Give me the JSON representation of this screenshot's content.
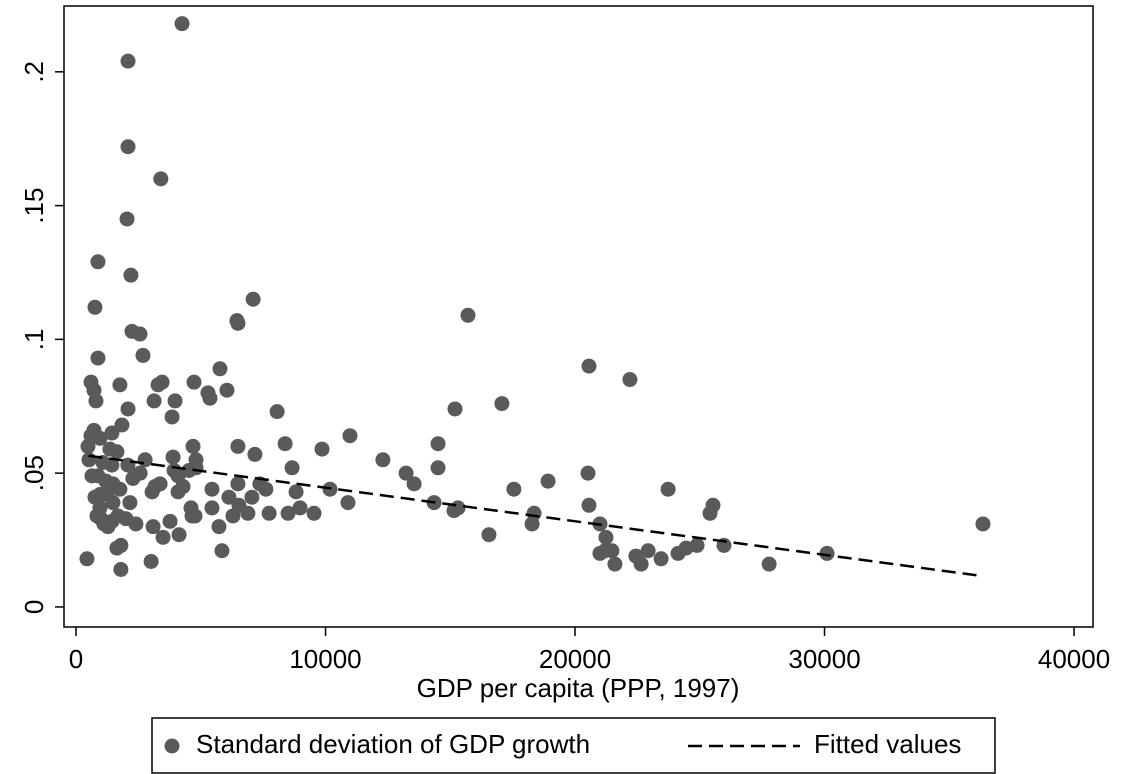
{
  "chart_data": {
    "type": "scatter",
    "x_label": "GDP per capita (PPP, 1997)",
    "xlim": [
      -481,
      40760
    ],
    "ylim": [
      -0.0075,
      0.2246
    ],
    "xticks": [
      0,
      10000,
      20000,
      30000,
      40000
    ],
    "yticks": [
      0,
      {
        "value": 0.05,
        "label": ".05"
      },
      {
        "value": 0.1,
        "label": ".1"
      },
      {
        "value": 0.15,
        "label": ".15"
      },
      {
        "value": 0.2,
        "label": ".2"
      }
    ],
    "grid": false,
    "legend": "bottom",
    "series": [
      {
        "name": "Standard deviation of GDP growth",
        "color": "#5a5a5a",
        "style": "markers",
        "x": [
          4250,
          2085,
          2085,
          3400,
          2045,
          880,
          2200,
          760,
          2245,
          2565,
          7100,
          6450,
          6490,
          2685,
          880,
          600,
          720,
          800,
          1760,
          3290,
          3450,
          3970,
          3130,
          3850,
          2085,
          4730,
          5290,
          5370,
          5770,
          6050,
          8060,
          15710,
          15190,
          17070,
          20560,
          22200,
          20520,
          20560,
          18920,
          17550,
          14510,
          14510,
          12300,
          13230,
          13550,
          10980,
          9860,
          10180,
          10900,
          14350,
          15150,
          15310,
          16550,
          18280,
          18360,
          21000,
          21240,
          21000,
          21200,
          21480,
          21600,
          22440,
          22650,
          22930,
          23450,
          24130,
          24450,
          24890,
          23730,
          25530,
          25410,
          25970,
          27780,
          30100,
          36350,
          8380,
          8660,
          8820,
          8980,
          8500,
          9540,
          7740,
          7050,
          7370,
          7610,
          7170,
          6490,
          6490,
          6530,
          6890,
          6290,
          6130,
          5450,
          5450,
          5730,
          5850,
          4690,
          4810,
          4810,
          4530,
          4090,
          3890,
          3930,
          4090,
          4290,
          4610,
          4770,
          4650,
          4130,
          3770,
          3490,
          3090,
          3050,
          3370,
          3170,
          2770,
          2570,
          2280,
          2080,
          1840,
          1440,
          1640,
          1440,
          1480,
          1760,
          1480,
          2160,
          2000,
          2400,
          1680,
          1440,
          1280,
          1120,
          1000,
          840,
          960,
          760,
          960,
          1240,
          1200,
          880,
          640,
          1080,
          1360,
          520,
          480,
          600,
          720,
          960,
          1800,
          1640,
          1800,
          3010,
          440
        ],
        "values": [
          0.218,
          0.204,
          0.172,
          0.16,
          0.145,
          0.129,
          0.124,
          0.112,
          0.103,
          0.102,
          0.115,
          0.107,
          0.106,
          0.094,
          0.093,
          0.084,
          0.081,
          0.077,
          0.083,
          0.083,
          0.084,
          0.077,
          0.077,
          0.071,
          0.074,
          0.084,
          0.08,
          0.078,
          0.089,
          0.081,
          0.073,
          0.109,
          0.074,
          0.076,
          0.09,
          0.085,
          0.05,
          0.038,
          0.047,
          0.044,
          0.061,
          0.052,
          0.055,
          0.05,
          0.046,
          0.064,
          0.059,
          0.044,
          0.039,
          0.039,
          0.036,
          0.037,
          0.027,
          0.031,
          0.035,
          0.031,
          0.026,
          0.02,
          0.021,
          0.021,
          0.016,
          0.019,
          0.016,
          0.021,
          0.018,
          0.02,
          0.022,
          0.023,
          0.044,
          0.038,
          0.035,
          0.023,
          0.016,
          0.02,
          0.031,
          0.061,
          0.052,
          0.043,
          0.037,
          0.035,
          0.035,
          0.035,
          0.041,
          0.046,
          0.044,
          0.057,
          0.06,
          0.046,
          0.038,
          0.035,
          0.034,
          0.041,
          0.044,
          0.037,
          0.03,
          0.021,
          0.06,
          0.055,
          0.052,
          0.051,
          0.049,
          0.056,
          0.051,
          0.043,
          0.045,
          0.037,
          0.034,
          0.034,
          0.027,
          0.032,
          0.026,
          0.03,
          0.043,
          0.046,
          0.045,
          0.055,
          0.05,
          0.048,
          0.053,
          0.068,
          0.065,
          0.058,
          0.053,
          0.046,
          0.044,
          0.039,
          0.039,
          0.033,
          0.031,
          0.034,
          0.032,
          0.03,
          0.031,
          0.033,
          0.034,
          0.037,
          0.041,
          0.042,
          0.042,
          0.047,
          0.049,
          0.049,
          0.054,
          0.059,
          0.055,
          0.06,
          0.064,
          0.066,
          0.063,
          0.023,
          0.022,
          0.014,
          0.017,
          0.018
        ]
      },
      {
        "name": "Fitted values",
        "color": "#000000",
        "style": "dashed",
        "x": [
          500,
          36350
        ],
        "values": [
          0.0565,
          0.0115
        ]
      }
    ]
  }
}
